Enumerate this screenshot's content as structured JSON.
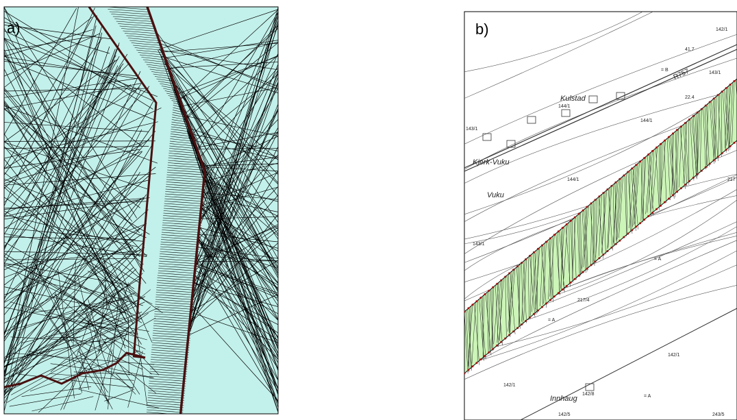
{
  "panels": [
    {
      "label": "a)"
    },
    {
      "label": "b)",
      "map_labels": [
        "Kulstad",
        "144/1",
        "143/1",
        "Kjerk-Vuku",
        "144/1",
        "Vuku",
        "143/1",
        "R757",
        "144/1",
        "22.4",
        "41.7",
        "142/1",
        "143/1",
        "217",
        "217/4",
        "142/1",
        "142/1",
        "142/8",
        "Innhaug",
        "142/5",
        "243/5",
        "= A",
        "= A",
        "= A",
        "= B"
      ]
    }
  ]
}
